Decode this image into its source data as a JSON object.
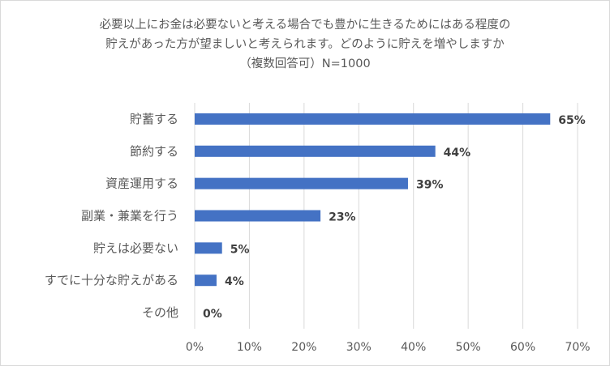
{
  "chart_data": {
    "type": "bar",
    "orientation": "horizontal",
    "title_lines": [
      "必要以上にお金は必要ないと考える場合でも豊かに生きるためにはある程度の",
      "貯えがあった方が望ましいと考えられます。どのように貯えを増やしますか",
      "（複数回答可）N=1000"
    ],
    "categories": [
      "貯蓄する",
      "節約する",
      "資産運用する",
      "副業・兼業を行う",
      "貯えは必要ない",
      "すでに十分な貯えがある",
      "その他"
    ],
    "values": [
      65,
      44,
      39,
      23,
      5,
      4,
      0
    ],
    "value_labels": [
      "65%",
      "44%",
      "39%",
      "23%",
      "5%",
      "4%",
      "0%"
    ],
    "xlim": [
      0,
      70
    ],
    "x_ticks": [
      0,
      10,
      20,
      30,
      40,
      50,
      60,
      70
    ],
    "x_tick_labels": [
      "0%",
      "10%",
      "20%",
      "30%",
      "40%",
      "50%",
      "60%",
      "70%"
    ],
    "grid": "vertical",
    "legend": "none",
    "bar_color": "#4472c4",
    "grid_color": "#d9d9d9"
  }
}
